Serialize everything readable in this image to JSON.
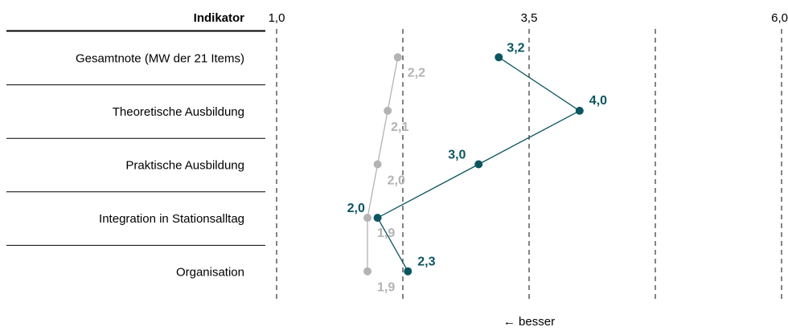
{
  "chart_data": {
    "type": "line",
    "orientation": "horizontal",
    "header": "Indikator",
    "xlim": [
      1.0,
      6.0
    ],
    "x_ticks": [
      1.0,
      3.5,
      6.0
    ],
    "x_tick_labels": [
      "1,0",
      "3,5",
      "6,0"
    ],
    "x_gridlines": [
      1.0,
      2.25,
      3.5,
      4.75,
      6.0
    ],
    "grid": "dashed vertical lines",
    "direction_note": "← besser",
    "categories": [
      "Gesamtnote (MW der 21 Items)",
      "Theoretische Ausbildung",
      "Praktische Ausbildung",
      "Integration in Stationsalltag",
      "Organisation"
    ],
    "series": [
      {
        "color": "#b3b3b3",
        "values": [
          2.2,
          2.1,
          2.0,
          1.9,
          1.9
        ],
        "labels": [
          "2,2",
          "2,1",
          "2,0",
          "1,9",
          "1,9"
        ]
      },
      {
        "color": "#0b5560",
        "values": [
          3.2,
          4.0,
          3.0,
          2.0,
          2.3
        ],
        "labels": [
          "3,2",
          "4,0",
          "3,0",
          "2,0",
          "2,3"
        ]
      }
    ]
  }
}
